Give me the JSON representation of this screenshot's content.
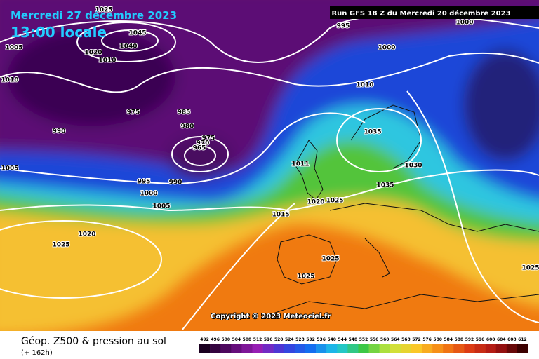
{
  "header": {
    "date": "Mercredi 27 décembre 2023",
    "time": "13:00 locale",
    "run": "Run GFS 18 Z du Mercredi 20 décembre 2023"
  },
  "copyright": "Copyright © 2023 Meteociel.fr",
  "footer": {
    "title": "Géop. Z500 & pression au sol",
    "lead": "(+ 162h)"
  },
  "legend": {
    "values": [
      492,
      496,
      500,
      504,
      508,
      512,
      516,
      520,
      524,
      528,
      532,
      536,
      540,
      544,
      548,
      552,
      556,
      560,
      564,
      568,
      572,
      576,
      580,
      584,
      588,
      592,
      596,
      600,
      604,
      608,
      612
    ]
  },
  "isobar_labels": [
    1025,
    1045,
    1040,
    1020,
    1010,
    995,
    1000,
    1000,
    1005,
    1010,
    1010,
    975,
    985,
    980,
    990,
    975,
    970,
    965,
    1035,
    1005,
    1011,
    1030,
    995,
    990,
    1035,
    1000,
    1005,
    1020,
    1025,
    1015,
    1020,
    1025,
    1025,
    1025,
    1025
  ]
}
